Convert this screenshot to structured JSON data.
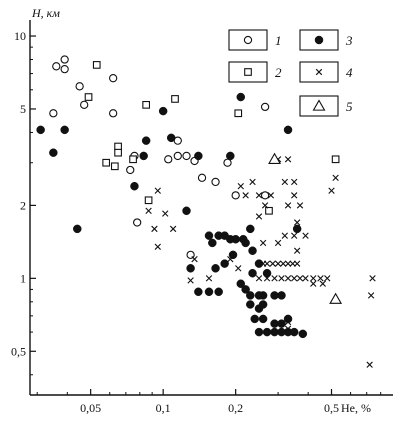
{
  "chart_data": {
    "type": "scatter",
    "title": "",
    "xlabel": "He, %",
    "ylabel": "H, км",
    "xscale": "log",
    "yscale": "log",
    "xlim": [
      0.028,
      0.9
    ],
    "ylim": [
      0.33,
      11
    ],
    "grid": false,
    "legend_position": "top-right",
    "colors": {
      "ink": "#111111"
    },
    "x_ticks": [
      {
        "value": 0.05,
        "label": "0,05"
      },
      {
        "value": 0.1,
        "label": "0,1"
      },
      {
        "value": 0.2,
        "label": "0,2"
      },
      {
        "value": 0.5,
        "label": "0,5"
      }
    ],
    "x_minor_ticks": [
      0.03,
      0.04,
      0.06,
      0.07,
      0.08,
      0.09,
      0.3,
      0.4,
      0.6,
      0.7,
      0.8
    ],
    "y_ticks": [
      {
        "value": 0.5,
        "label": "0,5"
      },
      {
        "value": 1,
        "label": "1"
      },
      {
        "value": 2,
        "label": "2"
      },
      {
        "value": 5,
        "label": "5"
      },
      {
        "value": 10,
        "label": "10"
      }
    ],
    "y_minor_ticks": [
      0.4,
      0.6,
      0.7,
      0.8,
      0.9,
      3,
      4,
      6,
      7,
      8,
      9
    ],
    "series": [
      {
        "label": "1",
        "marker": "open-circle",
        "points": [
          [
            0.035,
            4.8
          ],
          [
            0.036,
            7.5
          ],
          [
            0.039,
            7.3
          ],
          [
            0.039,
            8.0
          ],
          [
            0.045,
            6.2
          ],
          [
            0.047,
            5.2
          ],
          [
            0.062,
            6.7
          ],
          [
            0.062,
            4.8
          ],
          [
            0.073,
            2.8
          ],
          [
            0.076,
            3.2
          ],
          [
            0.078,
            1.7
          ],
          [
            0.105,
            3.1
          ],
          [
            0.115,
            3.7
          ],
          [
            0.115,
            3.2
          ],
          [
            0.125,
            3.2
          ],
          [
            0.13,
            1.25
          ],
          [
            0.135,
            3.05
          ],
          [
            0.145,
            2.6
          ],
          [
            0.165,
            2.5
          ],
          [
            0.185,
            3.0
          ],
          [
            0.2,
            2.2
          ],
          [
            0.265,
            5.1
          ],
          [
            0.265,
            2.2
          ]
        ]
      },
      {
        "label": "2",
        "marker": "open-square",
        "points": [
          [
            0.049,
            5.6
          ],
          [
            0.053,
            7.6
          ],
          [
            0.058,
            3.0
          ],
          [
            0.063,
            2.9
          ],
          [
            0.065,
            3.5
          ],
          [
            0.065,
            3.3
          ],
          [
            0.075,
            3.1
          ],
          [
            0.085,
            5.2
          ],
          [
            0.087,
            2.1
          ],
          [
            0.112,
            5.5
          ],
          [
            0.205,
            4.8
          ],
          [
            0.275,
            1.9
          ],
          [
            0.52,
            3.1
          ]
        ]
      },
      {
        "label": "3",
        "marker": "filled-circle",
        "points": [
          [
            0.031,
            4.1
          ],
          [
            0.035,
            3.3
          ],
          [
            0.039,
            4.1
          ],
          [
            0.044,
            1.6
          ],
          [
            0.076,
            2.4
          ],
          [
            0.083,
            3.2
          ],
          [
            0.085,
            3.7
          ],
          [
            0.1,
            4.9
          ],
          [
            0.108,
            3.8
          ],
          [
            0.125,
            1.9
          ],
          [
            0.14,
            3.2
          ],
          [
            0.155,
            1.5
          ],
          [
            0.16,
            1.4
          ],
          [
            0.17,
            1.5
          ],
          [
            0.18,
            1.5
          ],
          [
            0.19,
            1.45
          ],
          [
            0.195,
            1.25
          ],
          [
            0.2,
            1.45
          ],
          [
            0.215,
            1.45
          ],
          [
            0.22,
            1.4
          ],
          [
            0.23,
            1.6
          ],
          [
            0.235,
            1.3
          ],
          [
            0.21,
            5.6
          ],
          [
            0.19,
            3.2
          ],
          [
            0.33,
            4.1
          ],
          [
            0.36,
            1.6
          ],
          [
            0.13,
            1.1
          ],
          [
            0.165,
            1.1
          ],
          [
            0.14,
            0.88
          ],
          [
            0.155,
            0.88
          ],
          [
            0.17,
            0.88
          ],
          [
            0.18,
            1.15
          ],
          [
            0.21,
            0.95
          ],
          [
            0.22,
            0.9
          ],
          [
            0.235,
            1.05
          ],
          [
            0.25,
            1.15
          ],
          [
            0.27,
            1.05
          ],
          [
            0.23,
            0.85
          ],
          [
            0.25,
            0.85
          ],
          [
            0.26,
            0.85
          ],
          [
            0.29,
            0.85
          ],
          [
            0.31,
            0.85
          ],
          [
            0.23,
            0.78
          ],
          [
            0.25,
            0.75
          ],
          [
            0.26,
            0.78
          ],
          [
            0.24,
            0.68
          ],
          [
            0.26,
            0.68
          ],
          [
            0.29,
            0.65
          ],
          [
            0.31,
            0.65
          ],
          [
            0.33,
            0.68
          ],
          [
            0.25,
            0.6
          ],
          [
            0.27,
            0.6
          ],
          [
            0.29,
            0.6
          ],
          [
            0.31,
            0.6
          ],
          [
            0.33,
            0.6
          ],
          [
            0.35,
            0.6
          ],
          [
            0.38,
            0.59
          ]
        ]
      },
      {
        "label": "4",
        "marker": "cross",
        "points": [
          [
            0.095,
            2.3
          ],
          [
            0.095,
            1.35
          ],
          [
            0.092,
            1.6
          ],
          [
            0.087,
            1.9
          ],
          [
            0.102,
            1.85
          ],
          [
            0.11,
            1.6
          ],
          [
            0.135,
            1.2
          ],
          [
            0.155,
            1.0
          ],
          [
            0.13,
            0.98
          ],
          [
            0.19,
            1.2
          ],
          [
            0.205,
            1.1
          ],
          [
            0.21,
            2.4
          ],
          [
            0.22,
            2.2
          ],
          [
            0.235,
            2.5
          ],
          [
            0.25,
            2.2
          ],
          [
            0.25,
            1.8
          ],
          [
            0.265,
            2.0
          ],
          [
            0.28,
            2.2
          ],
          [
            0.3,
            3.1
          ],
          [
            0.32,
            2.5
          ],
          [
            0.33,
            3.1
          ],
          [
            0.33,
            2.0
          ],
          [
            0.35,
            2.5
          ],
          [
            0.35,
            2.2
          ],
          [
            0.37,
            2.0
          ],
          [
            0.36,
            1.7
          ],
          [
            0.32,
            1.5
          ],
          [
            0.35,
            1.5
          ],
          [
            0.39,
            1.5
          ],
          [
            0.3,
            1.4
          ],
          [
            0.26,
            1.4
          ],
          [
            0.26,
            1.15
          ],
          [
            0.27,
            1.15
          ],
          [
            0.285,
            1.15
          ],
          [
            0.3,
            1.15
          ],
          [
            0.315,
            1.15
          ],
          [
            0.33,
            1.15
          ],
          [
            0.345,
            1.15
          ],
          [
            0.36,
            1.15
          ],
          [
            0.25,
            1.0
          ],
          [
            0.27,
            1.0
          ],
          [
            0.29,
            1.0
          ],
          [
            0.31,
            1.0
          ],
          [
            0.33,
            1.0
          ],
          [
            0.35,
            1.0
          ],
          [
            0.37,
            1.0
          ],
          [
            0.39,
            1.0
          ],
          [
            0.42,
            1.0
          ],
          [
            0.45,
            1.0
          ],
          [
            0.48,
            1.0
          ],
          [
            0.42,
            0.95
          ],
          [
            0.46,
            0.95
          ],
          [
            0.5,
            2.3
          ],
          [
            0.52,
            2.6
          ],
          [
            0.36,
            1.3
          ],
          [
            0.33,
            0.62
          ],
          [
            0.33,
            0.66
          ],
          [
            0.74,
            1.0
          ],
          [
            0.73,
            0.85
          ],
          [
            0.72,
            0.44
          ]
        ]
      },
      {
        "label": "5",
        "marker": "open-triangle",
        "points": [
          [
            0.29,
            3.1
          ],
          [
            0.52,
            0.82
          ]
        ]
      }
    ]
  }
}
